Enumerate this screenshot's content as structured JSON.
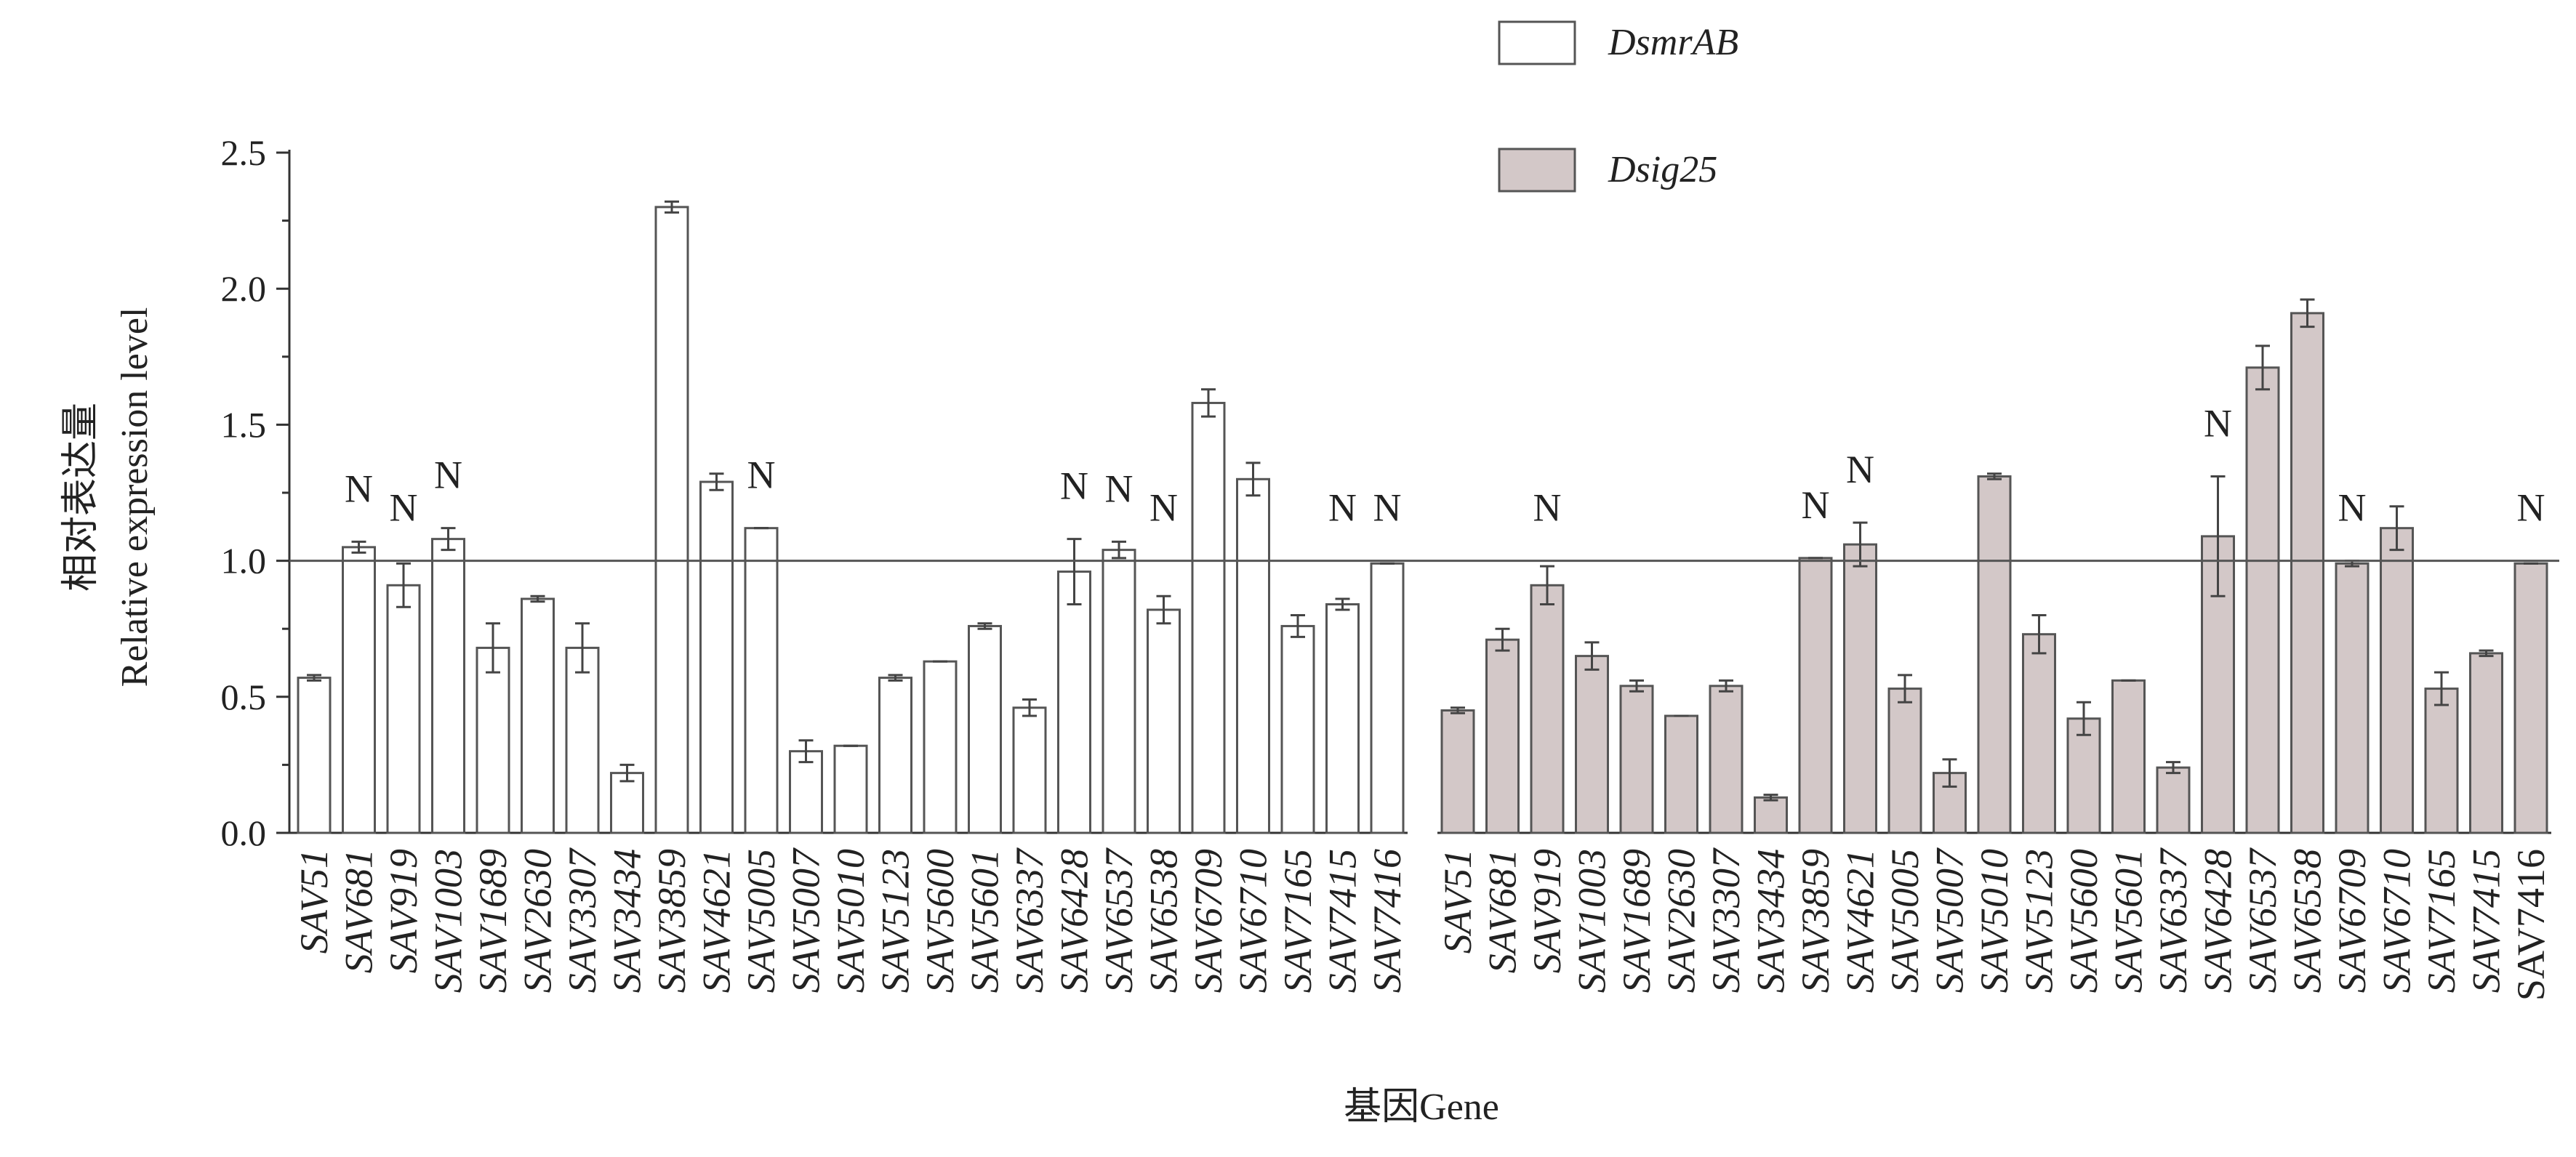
{
  "chart_data": {
    "type": "bar",
    "xlabel": "基因Gene",
    "ylabel_cn": "相对表达量",
    "ylabel": "Relative expression level",
    "ylim": [
      0,
      2.5
    ],
    "yticks": [
      "0.0",
      "0.5",
      "1.0",
      "1.5",
      "2.0",
      "2.5"
    ],
    "reference_line": 1.0,
    "grid": false,
    "legend_position": "top-right",
    "significance_marker": "N",
    "groups": [
      {
        "name": "DsmrAB",
        "color": "#ffffff",
        "categories": [
          "SAV51",
          "SAV681",
          "SAV919",
          "SAV1003",
          "SAV1689",
          "SAV2630",
          "SAV3307",
          "SAV3434",
          "SAV3859",
          "SAV4621",
          "SAV5005",
          "SAV5007",
          "SAV5010",
          "SAV5123",
          "SAV5600",
          "SAV5601",
          "SAV6337",
          "SAV6428",
          "SAV6537",
          "SAV6538",
          "SAV6709",
          "SAV6710",
          "SAV7165",
          "SAV7415",
          "SAV7416"
        ],
        "values": [
          0.57,
          1.05,
          0.91,
          1.08,
          0.68,
          0.86,
          0.68,
          0.22,
          2.3,
          1.29,
          1.12,
          0.3,
          0.32,
          0.57,
          0.63,
          0.76,
          0.46,
          0.96,
          1.04,
          0.82,
          1.58,
          1.3,
          0.76,
          0.84,
          0.99
        ],
        "errors": [
          0.01,
          0.02,
          0.08,
          0.04,
          0.09,
          0.01,
          0.09,
          0.03,
          0.02,
          0.03,
          0.0,
          0.04,
          0.0,
          0.01,
          0.0,
          0.01,
          0.03,
          0.12,
          0.03,
          0.05,
          0.05,
          0.06,
          0.04,
          0.02,
          0.0
        ],
        "significance": [
          "",
          "N",
          "N",
          "N",
          "",
          "",
          "",
          "",
          "",
          "",
          "N",
          "",
          "",
          "",
          "",
          "",
          "",
          "N",
          "N",
          "N",
          "",
          "",
          "",
          "N",
          "N"
        ]
      },
      {
        "name": "Dsig25",
        "color": "#d3c8c8",
        "categories": [
          "SAV51",
          "SAV681",
          "SAV919",
          "SAV1003",
          "SAV1689",
          "SAV2630",
          "SAV3307",
          "SAV3434",
          "SAV3859",
          "SAV4621",
          "SAV5005",
          "SAV5007",
          "SAV5010",
          "SAV5123",
          "SAV5600",
          "SAV5601",
          "SAV6337",
          "SAV6428",
          "SAV6537",
          "SAV6538",
          "SAV6709",
          "SAV6710",
          "SAV7165",
          "SAV7415",
          "SAV7416"
        ],
        "values": [
          0.45,
          0.71,
          0.91,
          0.65,
          0.54,
          0.43,
          0.54,
          0.13,
          1.01,
          1.06,
          0.53,
          0.22,
          1.31,
          0.73,
          0.42,
          0.56,
          0.24,
          1.09,
          1.71,
          1.91,
          0.99,
          1.12,
          0.53,
          0.66,
          0.99
        ],
        "errors": [
          0.01,
          0.04,
          0.07,
          0.05,
          0.02,
          0.0,
          0.02,
          0.01,
          0.0,
          0.08,
          0.05,
          0.05,
          0.01,
          0.07,
          0.06,
          0.0,
          0.02,
          0.22,
          0.08,
          0.05,
          0.01,
          0.08,
          0.06,
          0.01,
          0.0
        ],
        "significance": [
          "",
          "",
          "N",
          "",
          "",
          "",
          "",
          "",
          "N",
          "N",
          "",
          "",
          "",
          "",
          "",
          "",
          "",
          "N",
          "",
          "",
          "N",
          "",
          "",
          "",
          "N"
        ],
        "upright_labels": [
          "SAV7416"
        ]
      }
    ]
  }
}
